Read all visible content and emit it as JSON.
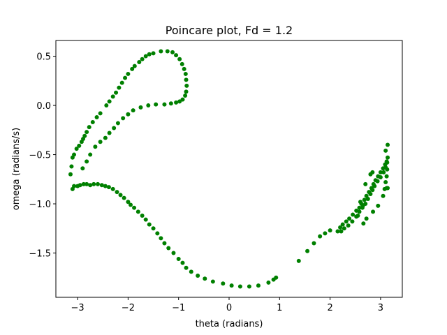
{
  "chart_data": {
    "type": "scatter",
    "title": "Poincare plot, Fd = 1.2",
    "xlabel": "theta (radians)",
    "ylabel": "omega (radians/s)",
    "xlim": [
      -3.43,
      3.43
    ],
    "ylim": [
      -1.95,
      0.66
    ],
    "xticks": [
      -3,
      -2,
      -1,
      0,
      1,
      2,
      3
    ],
    "xtick_labels": [
      "−3",
      "−2",
      "−1",
      "0",
      "1",
      "2",
      "3"
    ],
    "yticks": [
      0.5,
      0.0,
      -0.5,
      -1.0,
      -1.5
    ],
    "ytick_labels": [
      "0.5",
      "0.0",
      "−0.5",
      "−1.0",
      "−1.5"
    ],
    "grid": false,
    "marker_color": "#008000",
    "series": [
      {
        "points": [
          [
            -3.14,
            -0.7
          ],
          [
            -3.12,
            -0.62
          ],
          [
            -3.1,
            -0.53
          ],
          [
            -3.07,
            -0.5
          ],
          [
            -3.02,
            -0.44
          ],
          [
            -2.97,
            -0.41
          ],
          [
            -2.92,
            -0.37
          ],
          [
            -2.89,
            -0.34
          ],
          [
            -2.86,
            -0.31
          ],
          [
            -2.82,
            -0.27
          ],
          [
            -2.77,
            -0.22
          ],
          [
            -2.7,
            -0.17
          ],
          [
            -2.62,
            -0.12
          ],
          [
            -2.55,
            -0.08
          ],
          [
            -2.43,
            0.0
          ],
          [
            -2.37,
            0.04
          ],
          [
            -2.3,
            0.09
          ],
          [
            -2.24,
            0.13
          ],
          [
            -2.18,
            0.18
          ],
          [
            -2.12,
            0.23
          ],
          [
            -2.06,
            0.28
          ],
          [
            -2.0,
            0.32
          ],
          [
            -1.92,
            0.37
          ],
          [
            -1.87,
            0.4
          ],
          [
            -1.78,
            0.44
          ],
          [
            -1.72,
            0.47
          ],
          [
            -1.65,
            0.5
          ],
          [
            -1.58,
            0.52
          ],
          [
            -1.5,
            0.53
          ],
          [
            -1.35,
            0.55
          ],
          [
            -1.22,
            0.55
          ],
          [
            -1.12,
            0.54
          ],
          [
            -1.05,
            0.51
          ],
          [
            -0.98,
            0.47
          ],
          [
            -0.93,
            0.42
          ],
          [
            -0.89,
            0.37
          ],
          [
            -0.86,
            0.32
          ],
          [
            -0.85,
            0.26
          ],
          [
            -0.84,
            0.2
          ],
          [
            -0.85,
            0.14
          ],
          [
            -0.87,
            0.1
          ],
          [
            -0.92,
            0.06
          ],
          [
            -0.98,
            0.04
          ],
          [
            -1.05,
            0.03
          ],
          [
            -1.15,
            0.02
          ],
          [
            -1.28,
            0.01
          ],
          [
            -1.45,
            0.01
          ],
          [
            -1.6,
            0.0
          ],
          [
            -1.75,
            -0.02
          ],
          [
            -1.9,
            -0.05
          ],
          [
            -2.0,
            -0.09
          ],
          [
            -2.1,
            -0.13
          ],
          [
            -2.2,
            -0.18
          ],
          [
            -2.28,
            -0.23
          ],
          [
            -2.37,
            -0.28
          ],
          [
            -2.45,
            -0.33
          ],
          [
            -2.55,
            -0.37
          ],
          [
            -2.65,
            -0.42
          ],
          [
            -2.75,
            -0.5
          ],
          [
            -2.82,
            -0.57
          ],
          [
            -2.9,
            -0.64
          ],
          [
            -3.1,
            -0.85
          ],
          [
            -3.07,
            -0.82
          ],
          [
            -3.0,
            -0.82
          ],
          [
            -2.95,
            -0.81
          ],
          [
            -2.88,
            -0.8
          ],
          [
            -2.82,
            -0.8
          ],
          [
            -2.75,
            -0.81
          ],
          [
            -2.68,
            -0.8
          ],
          [
            -2.6,
            -0.8
          ],
          [
            -2.52,
            -0.81
          ],
          [
            -2.45,
            -0.82
          ],
          [
            -2.38,
            -0.83
          ],
          [
            -2.3,
            -0.85
          ],
          [
            -2.22,
            -0.88
          ],
          [
            -2.15,
            -0.91
          ],
          [
            -2.08,
            -0.94
          ],
          [
            -2.0,
            -0.98
          ],
          [
            -1.95,
            -1.01
          ],
          [
            -1.88,
            -1.04
          ],
          [
            -1.8,
            -1.08
          ],
          [
            -1.72,
            -1.12
          ],
          [
            -1.65,
            -1.16
          ],
          [
            -1.58,
            -1.21
          ],
          [
            -1.5,
            -1.25
          ],
          [
            -1.42,
            -1.3
          ],
          [
            -1.35,
            -1.35
          ],
          [
            -1.28,
            -1.4
          ],
          [
            -1.2,
            -1.45
          ],
          [
            -1.1,
            -1.5
          ],
          [
            -1.0,
            -1.56
          ],
          [
            -0.92,
            -1.6
          ],
          [
            -0.85,
            -1.65
          ],
          [
            -0.75,
            -1.69
          ],
          [
            -0.62,
            -1.73
          ],
          [
            -0.48,
            -1.76
          ],
          [
            -0.32,
            -1.79
          ],
          [
            -0.12,
            -1.81
          ],
          [
            0.05,
            -1.83
          ],
          [
            0.22,
            -1.84
          ],
          [
            0.4,
            -1.84
          ],
          [
            0.58,
            -1.83
          ],
          [
            0.78,
            -1.8
          ],
          [
            0.88,
            -1.77
          ],
          [
            0.93,
            -1.75
          ],
          [
            1.38,
            -1.58
          ],
          [
            1.55,
            -1.48
          ],
          [
            1.68,
            -1.4
          ],
          [
            1.8,
            -1.33
          ],
          [
            1.9,
            -1.3
          ],
          [
            2.0,
            -1.27
          ],
          [
            2.15,
            -1.28
          ],
          [
            2.2,
            -1.24
          ],
          [
            2.25,
            -1.21
          ],
          [
            2.32,
            -1.18
          ],
          [
            2.38,
            -1.15
          ],
          [
            2.45,
            -1.11
          ],
          [
            2.52,
            -1.07
          ],
          [
            2.58,
            -1.04
          ],
          [
            2.62,
            -1.0
          ],
          [
            2.68,
            -0.96
          ],
          [
            2.72,
            -0.92
          ],
          [
            2.77,
            -0.88
          ],
          [
            2.82,
            -0.84
          ],
          [
            2.86,
            -0.8
          ],
          [
            2.9,
            -0.76
          ],
          [
            2.95,
            -0.72
          ],
          [
            3.0,
            -0.68
          ],
          [
            3.05,
            -0.64
          ],
          [
            3.09,
            -0.6
          ],
          [
            3.12,
            -0.57
          ],
          [
            3.14,
            -0.53
          ],
          [
            2.22,
            -1.28
          ],
          [
            2.28,
            -1.25
          ],
          [
            2.36,
            -1.22
          ],
          [
            2.44,
            -1.18
          ],
          [
            2.52,
            -1.13
          ],
          [
            2.58,
            -1.08
          ],
          [
            2.64,
            -1.04
          ],
          [
            2.7,
            -1.0
          ],
          [
            2.75,
            -0.95
          ],
          [
            2.8,
            -0.9
          ],
          [
            2.84,
            -0.86
          ],
          [
            2.88,
            -0.82
          ],
          [
            2.94,
            -0.77
          ],
          [
            3.0,
            -0.73
          ],
          [
            3.06,
            -0.68
          ],
          [
            3.1,
            -0.63
          ],
          [
            3.13,
            -0.58
          ],
          [
            2.6,
            -0.98
          ],
          [
            2.65,
            -1.02
          ],
          [
            2.55,
            -1.12
          ],
          [
            2.66,
            -1.2
          ],
          [
            2.72,
            -1.15
          ],
          [
            2.85,
            -1.08
          ],
          [
            2.95,
            -1.02
          ],
          [
            3.05,
            -0.92
          ],
          [
            3.08,
            -0.85
          ],
          [
            3.12,
            -0.84
          ],
          [
            3.14,
            -0.84
          ],
          [
            3.1,
            -0.78
          ],
          [
            3.12,
            -0.72
          ],
          [
            3.13,
            -0.65
          ],
          [
            3.1,
            -0.46
          ],
          [
            3.14,
            -0.4
          ],
          [
            2.8,
            -0.7
          ],
          [
            2.7,
            -0.8
          ],
          [
            2.84,
            -0.68
          ]
        ]
      }
    ]
  }
}
